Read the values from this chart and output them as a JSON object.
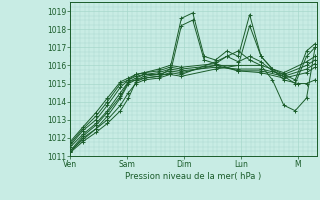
{
  "title": "",
  "xlabel": "Pression niveau de la mer( hPa )",
  "ylim": [
    1011,
    1019.5
  ],
  "xlim": [
    0,
    4.33
  ],
  "yticks": [
    1011,
    1012,
    1013,
    1014,
    1015,
    1016,
    1017,
    1018,
    1019
  ],
  "xtick_labels": [
    "Ven",
    "Sam",
    "Dim",
    "Lun",
    "M"
  ],
  "xtick_positions": [
    0,
    1,
    2,
    3,
    4
  ],
  "bg_color": "#c8ece4",
  "grid_color": "#a8d8cc",
  "line_color": "#1a5c2a",
  "series": [
    {
      "x": [
        0.0,
        0.22,
        0.45,
        0.65,
        0.88,
        1.02,
        1.15,
        1.3,
        1.55,
        1.75,
        1.95,
        2.15,
        2.35,
        2.55,
        2.75,
        2.95,
        3.15,
        3.35,
        3.55,
        3.75,
        3.95,
        4.15,
        4.3
      ],
      "y": [
        1011.2,
        1011.8,
        1012.3,
        1012.8,
        1013.5,
        1014.2,
        1015.1,
        1015.3,
        1015.4,
        1015.8,
        1018.6,
        1018.9,
        1016.5,
        1016.3,
        1016.8,
        1016.5,
        1018.8,
        1016.5,
        1015.8,
        1015.5,
        1015.2,
        1016.8,
        1017.2
      ]
    },
    {
      "x": [
        0.0,
        0.22,
        0.45,
        0.65,
        0.88,
        1.02,
        1.15,
        1.3,
        1.55,
        1.75,
        1.95,
        2.15,
        2.35,
        2.55,
        2.75,
        2.95,
        3.15,
        3.35,
        3.55,
        3.75,
        3.95,
        4.15,
        4.3
      ],
      "y": [
        1011.3,
        1011.9,
        1012.5,
        1013.0,
        1013.8,
        1014.5,
        1015.0,
        1015.2,
        1015.3,
        1015.5,
        1018.2,
        1018.5,
        1016.3,
        1016.1,
        1016.5,
        1016.2,
        1016.5,
        1016.2,
        1015.7,
        1015.4,
        1015.0,
        1016.5,
        1017.0
      ]
    },
    {
      "x": [
        0.0,
        0.22,
        0.45,
        0.65,
        0.88,
        1.02,
        1.15,
        1.3,
        1.55,
        1.75,
        1.95,
        2.55,
        2.95,
        3.35,
        3.75,
        4.15,
        4.3
      ],
      "y": [
        1011.5,
        1012.2,
        1012.8,
        1013.5,
        1014.5,
        1015.1,
        1015.3,
        1015.5,
        1015.5,
        1015.7,
        1015.6,
        1016.0,
        1016.0,
        1016.0,
        1015.6,
        1016.2,
        1016.5
      ]
    },
    {
      "x": [
        0.0,
        0.22,
        0.45,
        0.65,
        0.88,
        1.02,
        1.15,
        1.3,
        1.55,
        1.75,
        1.95,
        2.55,
        2.95,
        3.35,
        3.75,
        4.15,
        4.3
      ],
      "y": [
        1011.6,
        1012.4,
        1013.0,
        1013.8,
        1014.8,
        1015.2,
        1015.4,
        1015.5,
        1015.6,
        1015.8,
        1015.7,
        1015.9,
        1015.8,
        1015.8,
        1015.5,
        1016.0,
        1016.3
      ]
    },
    {
      "x": [
        0.0,
        0.22,
        0.45,
        0.65,
        0.88,
        1.02,
        1.15,
        1.3,
        1.55,
        1.75,
        1.95,
        2.55,
        2.95,
        3.35,
        3.75,
        4.15,
        4.3
      ],
      "y": [
        1011.7,
        1012.5,
        1013.2,
        1014.0,
        1015.0,
        1015.2,
        1015.5,
        1015.6,
        1015.7,
        1015.9,
        1015.8,
        1016.0,
        1015.7,
        1015.7,
        1015.4,
        1015.8,
        1016.1
      ]
    },
    {
      "x": [
        0.0,
        0.22,
        0.45,
        0.65,
        0.88,
        1.02,
        1.15,
        1.3,
        1.55,
        1.75,
        1.95,
        2.55,
        2.95,
        3.35,
        3.75,
        4.15,
        4.3
      ],
      "y": [
        1011.8,
        1012.6,
        1013.4,
        1014.2,
        1015.1,
        1015.3,
        1015.5,
        1015.6,
        1015.8,
        1016.0,
        1015.9,
        1016.1,
        1015.7,
        1015.6,
        1015.3,
        1015.6,
        1015.9
      ]
    },
    {
      "x": [
        0.0,
        0.22,
        0.45,
        0.65,
        0.88,
        1.02,
        1.15,
        1.3,
        1.55,
        1.75,
        1.95,
        2.55,
        2.95,
        3.15,
        3.35,
        3.55,
        3.75,
        4.0,
        4.15,
        4.3
      ],
      "y": [
        1011.2,
        1012.0,
        1012.5,
        1013.2,
        1014.2,
        1015.0,
        1015.2,
        1015.4,
        1015.5,
        1015.5,
        1015.4,
        1015.8,
        1016.0,
        1018.2,
        1016.5,
        1015.8,
        1015.2,
        1015.0,
        1015.0,
        1015.2
      ]
    },
    {
      "x": [
        0.0,
        0.22,
        0.45,
        0.65,
        0.88,
        1.02,
        1.15,
        1.3,
        1.55,
        1.75,
        1.95,
        2.55,
        2.75,
        2.95,
        3.15,
        3.35,
        3.55,
        3.75,
        3.95,
        4.15,
        4.3
      ],
      "y": [
        1011.3,
        1012.1,
        1012.7,
        1013.4,
        1014.3,
        1015.1,
        1015.2,
        1015.3,
        1015.4,
        1015.6,
        1015.5,
        1016.2,
        1016.5,
        1016.8,
        1016.3,
        1016.0,
        1015.2,
        1013.8,
        1013.5,
        1014.2,
        1017.0
      ]
    }
  ]
}
